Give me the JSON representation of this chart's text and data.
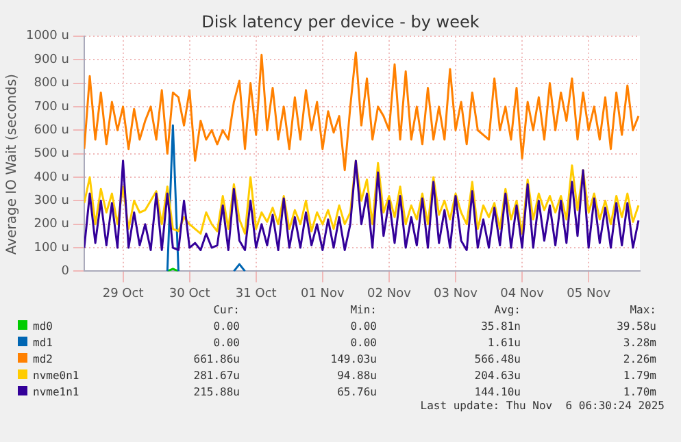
{
  "chart_data": {
    "type": "line",
    "title": "Disk latency per device - by week",
    "ylabel": "Average IO Wait (seconds)",
    "x": [
      "2025-10-28T22:00",
      "2025-10-29T00:00",
      "2025-10-29T02:00",
      "2025-10-29T04:00",
      "2025-10-29T06:00",
      "2025-10-29T08:00",
      "2025-10-29T10:00",
      "2025-10-29T12:00",
      "2025-10-29T14:00",
      "2025-10-29T16:00",
      "2025-10-29T18:00",
      "2025-10-29T20:00",
      "2025-10-29T22:00",
      "2025-10-30T00:00",
      "2025-10-30T02:00",
      "2025-10-30T04:00",
      "2025-10-30T06:00",
      "2025-10-30T08:00",
      "2025-10-30T10:00",
      "2025-10-30T12:00",
      "2025-10-30T14:00",
      "2025-10-30T16:00",
      "2025-10-30T18:00",
      "2025-10-30T20:00",
      "2025-10-30T22:00",
      "2025-10-31T00:00",
      "2025-10-31T02:00",
      "2025-10-31T04:00",
      "2025-10-31T06:00",
      "2025-10-31T08:00",
      "2025-10-31T10:00",
      "2025-10-31T12:00",
      "2025-10-31T14:00",
      "2025-10-31T16:00",
      "2025-10-31T18:00",
      "2025-10-31T20:00",
      "2025-10-31T22:00",
      "2025-11-01T00:00",
      "2025-11-01T02:00",
      "2025-11-01T04:00",
      "2025-11-01T06:00",
      "2025-11-01T08:00",
      "2025-11-01T10:00",
      "2025-11-01T12:00",
      "2025-11-01T14:00",
      "2025-11-01T16:00",
      "2025-11-01T18:00",
      "2025-11-01T20:00",
      "2025-11-01T22:00",
      "2025-11-02T00:00",
      "2025-11-02T02:00",
      "2025-11-02T04:00",
      "2025-11-02T06:00",
      "2025-11-02T08:00",
      "2025-11-02T10:00",
      "2025-11-02T12:00",
      "2025-11-02T14:00",
      "2025-11-02T16:00",
      "2025-11-02T18:00",
      "2025-11-02T20:00",
      "2025-11-02T22:00",
      "2025-11-03T00:00",
      "2025-11-03T02:00",
      "2025-11-03T04:00",
      "2025-11-03T06:00",
      "2025-11-03T08:00",
      "2025-11-03T10:00",
      "2025-11-03T12:00",
      "2025-11-03T14:00",
      "2025-11-03T16:00",
      "2025-11-03T18:00",
      "2025-11-03T20:00",
      "2025-11-03T22:00",
      "2025-11-04T00:00",
      "2025-11-04T02:00",
      "2025-11-04T04:00",
      "2025-11-04T06:00",
      "2025-11-04T08:00",
      "2025-11-04T10:00",
      "2025-11-04T12:00",
      "2025-11-04T14:00",
      "2025-11-04T16:00",
      "2025-11-04T18:00",
      "2025-11-04T20:00",
      "2025-11-04T22:00",
      "2025-11-05T00:00",
      "2025-11-05T02:00",
      "2025-11-05T04:00",
      "2025-11-05T06:00",
      "2025-11-05T08:00",
      "2025-11-05T10:00",
      "2025-11-05T12:00",
      "2025-11-05T14:00",
      "2025-11-05T16:00",
      "2025-11-05T18:00",
      "2025-11-05T20:00",
      "2025-11-05T22:00",
      "2025-11-06T00:00",
      "2025-11-06T02:00",
      "2025-11-06T04:00",
      "2025-11-06T06:00"
    ],
    "series": [
      {
        "name": "md0",
        "color": "#00cc00",
        "values": [
          null,
          null,
          null,
          null,
          null,
          null,
          null,
          null,
          null,
          null,
          null,
          null,
          null,
          null,
          null,
          0,
          10,
          0,
          null,
          null,
          null,
          null,
          null,
          null,
          null,
          null,
          null,
          null,
          null,
          null,
          null,
          null,
          null,
          null,
          null,
          null,
          null,
          null,
          null,
          null,
          null,
          null,
          null,
          null,
          null,
          null,
          null,
          null,
          null,
          null,
          null,
          null,
          null,
          null,
          null,
          null,
          null,
          null,
          null,
          null,
          null,
          null,
          null,
          null,
          null,
          null,
          null,
          null,
          null,
          null,
          null,
          null,
          null,
          null,
          null,
          null,
          null,
          null,
          null,
          null,
          null,
          null,
          null,
          null,
          null,
          null,
          null,
          null,
          null,
          null,
          null,
          null,
          null,
          null,
          null,
          null,
          null,
          null,
          null,
          null,
          null
        ]
      },
      {
        "name": "md1",
        "color": "#0066b3",
        "values": [
          null,
          null,
          null,
          null,
          null,
          null,
          null,
          null,
          null,
          null,
          null,
          null,
          null,
          null,
          null,
          0,
          620,
          0,
          null,
          null,
          null,
          null,
          null,
          null,
          null,
          null,
          null,
          0,
          30,
          0,
          null,
          null,
          null,
          null,
          null,
          null,
          null,
          null,
          null,
          null,
          null,
          null,
          null,
          null,
          null,
          null,
          null,
          null,
          null,
          null,
          null,
          null,
          null,
          null,
          null,
          null,
          null,
          null,
          null,
          null,
          null,
          null,
          null,
          null,
          null,
          null,
          null,
          null,
          null,
          null,
          null,
          null,
          null,
          null,
          null,
          null,
          null,
          null,
          null,
          null,
          null,
          null,
          null,
          null,
          null,
          null,
          null,
          null,
          null,
          null,
          null,
          null,
          null,
          null,
          null,
          null,
          null,
          null,
          null,
          null,
          null
        ]
      },
      {
        "name": "md2",
        "color": "#ff8000",
        "values": [
          520,
          830,
          560,
          760,
          540,
          720,
          600,
          700,
          520,
          690,
          560,
          640,
          700,
          560,
          770,
          500,
          760,
          740,
          620,
          770,
          470,
          640,
          560,
          600,
          540,
          600,
          560,
          720,
          810,
          520,
          800,
          580,
          920,
          600,
          780,
          560,
          700,
          520,
          740,
          560,
          770,
          600,
          720,
          520,
          680,
          590,
          660,
          430,
          700,
          930,
          620,
          820,
          560,
          700,
          660,
          600,
          880,
          560,
          850,
          560,
          700,
          540,
          780,
          560,
          700,
          560,
          860,
          600,
          720,
          540,
          760,
          600,
          580,
          560,
          820,
          600,
          700,
          560,
          780,
          480,
          720,
          600,
          740,
          560,
          800,
          600,
          760,
          640,
          820,
          560,
          760,
          600,
          700,
          560,
          740,
          520,
          760,
          580,
          790,
          600,
          660
        ]
      },
      {
        "name": "nvme0n1",
        "color": "#ffcc00",
        "values": [
          290,
          400,
          200,
          350,
          250,
          330,
          200,
          360,
          180,
          300,
          250,
          260,
          300,
          340,
          200,
          360,
          180,
          170,
          230,
          200,
          180,
          160,
          250,
          200,
          170,
          320,
          180,
          370,
          220,
          160,
          400,
          180,
          250,
          210,
          270,
          200,
          320,
          180,
          260,
          200,
          300,
          170,
          250,
          200,
          260,
          180,
          280,
          200,
          250,
          470,
          300,
          390,
          200,
          460,
          250,
          320,
          230,
          360,
          200,
          280,
          220,
          330,
          200,
          400,
          240,
          300,
          220,
          330,
          250,
          200,
          380,
          180,
          280,
          230,
          290,
          180,
          350,
          220,
          300,
          160,
          390,
          220,
          330,
          260,
          320,
          250,
          320,
          220,
          450,
          260,
          430,
          250,
          330,
          220,
          300,
          200,
          320,
          230,
          330,
          210,
          280
        ]
      },
      {
        "name": "nvme1n1",
        "color": "#330099",
        "values": [
          100,
          330,
          120,
          300,
          110,
          290,
          100,
          470,
          100,
          250,
          110,
          200,
          90,
          330,
          90,
          330,
          100,
          90,
          300,
          100,
          120,
          90,
          160,
          100,
          110,
          280,
          90,
          350,
          130,
          90,
          300,
          100,
          200,
          110,
          240,
          90,
          310,
          100,
          230,
          100,
          250,
          110,
          200,
          90,
          220,
          100,
          230,
          90,
          200,
          470,
          200,
          330,
          100,
          420,
          150,
          300,
          120,
          320,
          100,
          230,
          110,
          310,
          100,
          380,
          120,
          260,
          100,
          320,
          130,
          90,
          340,
          100,
          220,
          100,
          270,
          110,
          330,
          100,
          280,
          100,
          370,
          100,
          300,
          130,
          280,
          110,
          300,
          120,
          380,
          150,
          430,
          100,
          310,
          120,
          270,
          100,
          290,
          110,
          290,
          100,
          216
        ]
      }
    ],
    "xlim": [
      "2025-10-28T22:00",
      "2025-11-06T06:30"
    ],
    "xticks": [
      {
        "value": "2025-10-29T12:00",
        "label": "29 Oct"
      },
      {
        "value": "2025-10-30T12:00",
        "label": "30 Oct"
      },
      {
        "value": "2025-10-31T12:00",
        "label": "31 Oct"
      },
      {
        "value": "2025-11-01T12:00",
        "label": "01 Nov"
      },
      {
        "value": "2025-11-02T12:00",
        "label": "02 Nov"
      },
      {
        "value": "2025-11-03T12:00",
        "label": "03 Nov"
      },
      {
        "value": "2025-11-04T12:00",
        "label": "04 Nov"
      },
      {
        "value": "2025-11-05T12:00",
        "label": "05 Nov"
      }
    ],
    "ylim": [
      0,
      1000
    ],
    "yticks": [
      0,
      {
        "value": 100,
        "label": "100 u"
      },
      {
        "value": 200,
        "label": "200 u"
      },
      {
        "value": 300,
        "label": "300 u"
      },
      {
        "value": 400,
        "label": "400 u"
      },
      {
        "value": 500,
        "label": "500 u"
      },
      {
        "value": 600,
        "label": "600 u"
      },
      {
        "value": 700,
        "label": "700 u"
      },
      {
        "value": 800,
        "label": "800 u"
      },
      {
        "value": 900,
        "label": "900 u"
      },
      {
        "value": 1000,
        "label": "1000 u"
      }
    ],
    "grid": true,
    "legend": "bottom",
    "marker": "none",
    "line_style": "solid",
    "annotations": [
      "Cur:",
      "Min:",
      "Avg:",
      "Max:",
      "0.00",
      "0.00",
      "35.81n",
      "39.58u",
      "0.00",
      "0.00",
      "1.61u",
      "3.28m",
      "661.86u",
      "149.03u",
      "566.48u",
      "2.26m",
      "281.67u",
      "94.88u",
      "204.63u",
      "1.79m",
      "215.88u",
      "65.76u",
      "144.10u",
      "1.70m",
      "Last update: Thu Nov  6 06:30:24 2025"
    ]
  }
}
